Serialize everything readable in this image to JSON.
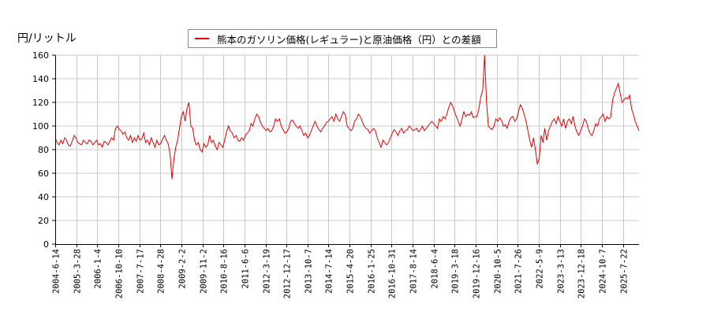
{
  "chart_data": {
    "type": "line",
    "title": "",
    "ylabel": "円/リットル",
    "xlabel": "",
    "ylim": [
      0,
      160
    ],
    "y_ticks": [
      0,
      20,
      40,
      60,
      80,
      100,
      120,
      140,
      160
    ],
    "grid": true,
    "legend_position": "top-center",
    "x_tick_labels": [
      "2004-6-14",
      "2005-3-28",
      "2006-1-4",
      "2006-10-10",
      "2007-7-17",
      "2008-4-28",
      "2009-2-2",
      "2009-11-2",
      "2010-8-16",
      "2011-6-6",
      "2012-3-19",
      "2012-12-17",
      "2013-10-7",
      "2014-7-14",
      "2015-4-20",
      "2016-1-25",
      "2016-10-31",
      "2017-8-14",
      "2018-6-4",
      "2019-3-18",
      "2019-12-16",
      "2020-10-5",
      "2021-7-26",
      "2022-5-9",
      "2023-3-13",
      "2023-12-18",
      "2024-10-7",
      "2025-7-22"
    ],
    "series": [
      {
        "name": "熊本のガソリン価格(レギュラー)と原油価格（円）との差額",
        "color": "#e00000",
        "approx_monthly_values": [
          90,
          86,
          84,
          88,
          85,
          90,
          88,
          84,
          83,
          87,
          92,
          90,
          86,
          85,
          84,
          88,
          86,
          85,
          88,
          87,
          84,
          86,
          88,
          84,
          85,
          82,
          87,
          86,
          84,
          87,
          90,
          88,
          98,
          100,
          97,
          96,
          93,
          95,
          90,
          88,
          92,
          86,
          90,
          87,
          92,
          88,
          89,
          94,
          86,
          88,
          84,
          90,
          86,
          82,
          88,
          84,
          85,
          89,
          92,
          88,
          85,
          76,
          55,
          72,
          82,
          88,
          98,
          108,
          112,
          104,
          115,
          120,
          100,
          98,
          88,
          84,
          86,
          80,
          78,
          85,
          82,
          84,
          92,
          86,
          88,
          83,
          80,
          86,
          84,
          82,
          88,
          95,
          100,
          96,
          94,
          90,
          92,
          88,
          87,
          90,
          88,
          92,
          94,
          96,
          102,
          100,
          106,
          110,
          108,
          103,
          100,
          98,
          96,
          98,
          95,
          96,
          100,
          106,
          104,
          106,
          100,
          97,
          94,
          95,
          98,
          104,
          105,
          102,
          100,
          98,
          100,
          96,
          92,
          94,
          90,
          92,
          96,
          100,
          104,
          100,
          97,
          95,
          98,
          100,
          103,
          104,
          106,
          108,
          104,
          110,
          106,
          104,
          108,
          112,
          110,
          100,
          98,
          96,
          98,
          104,
          106,
          110,
          108,
          104,
          100,
          98,
          97,
          94,
          96,
          98,
          96,
          90,
          86,
          82,
          88,
          86,
          84,
          86,
          90,
          94,
          97,
          95,
          92,
          96,
          98,
          94,
          96,
          97,
          100,
          98,
          96,
          97,
          98,
          95,
          97,
          100,
          96,
          98,
          100,
          102,
          104,
          102,
          100,
          98,
          106,
          104,
          108,
          106,
          110,
          116,
          120,
          117,
          112,
          108,
          104,
          100,
          106,
          112,
          108,
          110,
          109,
          112,
          107,
          108,
          108,
          115,
          125,
          130,
          160,
          122,
          100,
          98,
          97,
          100,
          106,
          104,
          107,
          105,
          100,
          101,
          98,
          104,
          107,
          108,
          104,
          106,
          112,
          118,
          115,
          110,
          104,
          96,
          88,
          82,
          90,
          80,
          68,
          72,
          92,
          86,
          98,
          88,
          96,
          100,
          104,
          106,
          102,
          108,
          104,
          100,
          106,
          98,
          104,
          106,
          102,
          108,
          100,
          95,
          92,
          96,
          100,
          106,
          104,
          98,
          94,
          92,
          96,
          102,
          100,
          106,
          108,
          110,
          104,
          108,
          106,
          108,
          122,
          128,
          132,
          136,
          128,
          120,
          122,
          124,
          123,
          126,
          115,
          110,
          104,
          100,
          96
        ]
      }
    ]
  },
  "legend": {
    "label": "熊本のガソリン価格(レギュラー)と原油価格（円）との差額"
  },
  "axis": {
    "y_unit_label": "円/リットル"
  }
}
